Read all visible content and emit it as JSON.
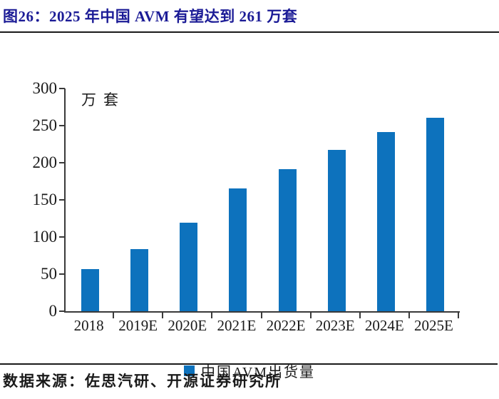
{
  "figure": {
    "title": "图26：2025 年中国 AVM 有望达到 261 万套",
    "source": "数据来源：佐思汽研、开源证券研究所"
  },
  "chart_data": {
    "type": "bar",
    "title": "图26：2025 年中国 AVM 有望达到 261 万套",
    "unit_label": "万套",
    "categories": [
      "2018",
      "2019E",
      "2020E",
      "2021E",
      "2022E",
      "2023E",
      "2024E",
      "2025E"
    ],
    "series": [
      {
        "name": "中国AVM出货量",
        "values": [
          57,
          84,
          119,
          165,
          191,
          217,
          241,
          261
        ]
      }
    ],
    "xlabel": "",
    "ylabel": "万套",
    "ylim": [
      0,
      300
    ],
    "yticks": [
      0,
      50,
      100,
      150,
      200,
      250,
      300
    ],
    "grid": false,
    "legend_position": "bottom"
  },
  "legend": {
    "label": "中国AVM出货量"
  },
  "colors": {
    "title": "#1b1b96",
    "bar": "#0d72bd",
    "axis": "#3a3a3a",
    "text": "#1a1a1a"
  }
}
